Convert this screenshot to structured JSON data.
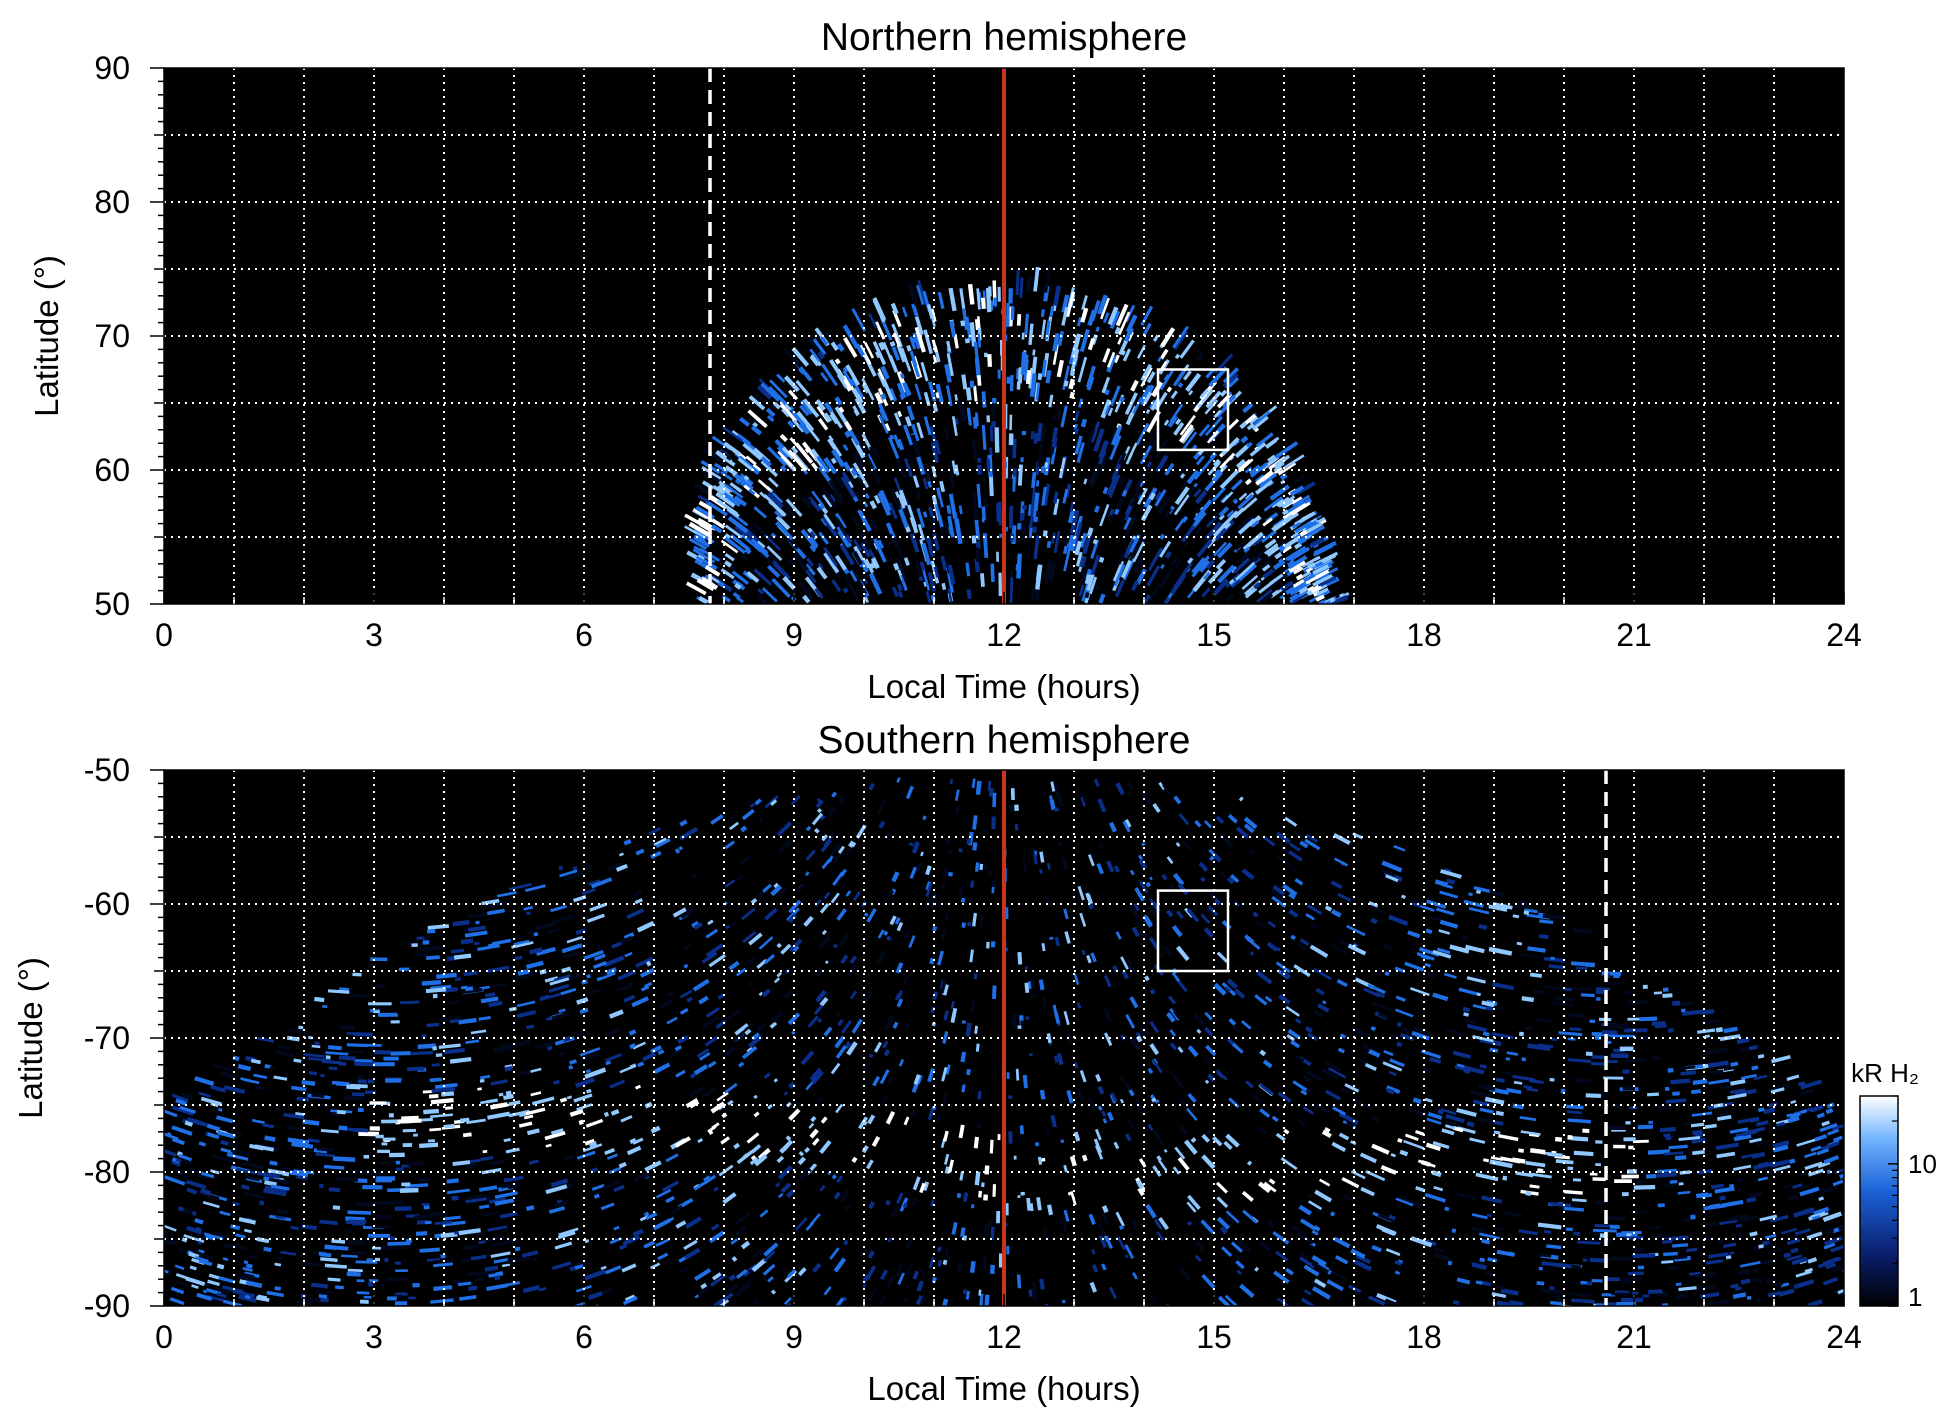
{
  "chart_data": [
    {
      "type": "heatmap",
      "title": "Northern hemisphere",
      "xlabel": "Local Time (hours)",
      "ylabel": "Latitude (°)",
      "xlim": [
        0,
        24
      ],
      "ylim": [
        50,
        90
      ],
      "xticks": [
        "0",
        "3",
        "6",
        "9",
        "12",
        "15",
        "18",
        "21",
        "24"
      ],
      "yticks": [
        "50",
        "60",
        "70",
        "80",
        "90"
      ],
      "grid": true,
      "colormap": "black-blue-white",
      "noon_line_hours": 12,
      "dashed_line_hours": 7.8,
      "box": {
        "x": [
          14.2,
          15.2
        ],
        "y": [
          61.5,
          67.5
        ]
      },
      "emission": {
        "lt_range": [
          7.7,
          16.7
        ],
        "outer_oval_lat": 68,
        "peak_lat": 73.5
      }
    },
    {
      "type": "heatmap",
      "title": "Southern hemisphere",
      "xlabel": "Local Time (hours)",
      "ylabel": "Latitude (°)",
      "xlim": [
        0,
        24
      ],
      "ylim": [
        -90,
        -50
      ],
      "xticks": [
        "0",
        "3",
        "6",
        "9",
        "12",
        "15",
        "18",
        "21",
        "24"
      ],
      "yticks": [
        "-90",
        "-80",
        "-70",
        "-60",
        "-50"
      ],
      "grid": true,
      "colormap": "black-blue-white",
      "noon_line_hours": 12,
      "dashed_line_hours": 20.6,
      "box": {
        "x": [
          14.2,
          15.2
        ],
        "y": [
          -65,
          -59
        ]
      },
      "emission": {
        "oval_lat_at_noon": -82,
        "oval_lat_at_6": -76,
        "oval_lat_at_18": -79
      }
    }
  ],
  "colorbar": {
    "label": "kR H₂",
    "scale": "log",
    "ticks": [
      "1",
      "10"
    ],
    "range": [
      1,
      30
    ]
  },
  "colors": {
    "background": "#000000",
    "emission_dark": "#0a2f8a",
    "emission_mid": "#1f6fe6",
    "emission_light": "#8fc8ff",
    "emission_peak": "#ffffff",
    "noon_line": "#c8341e",
    "grid": "#ffffff",
    "box": "#ffffff"
  }
}
